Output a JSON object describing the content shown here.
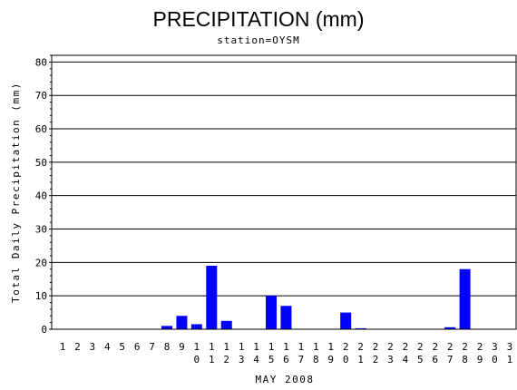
{
  "chart_data": {
    "type": "bar",
    "title": "PRECIPITATION (mm)",
    "subtitle": "station=OYSM",
    "xlabel": "MAY 2008",
    "ylabel": "Total Daily Precipitation (mm)",
    "ylim": [
      0,
      82
    ],
    "yticks": [
      0,
      10,
      20,
      30,
      40,
      50,
      60,
      70,
      80
    ],
    "grid": true,
    "bar_color": "#0000ff",
    "categories": [
      "1",
      "2",
      "3",
      "4",
      "5",
      "6",
      "7",
      "8",
      "9",
      "10",
      "11",
      "12",
      "13",
      "14",
      "15",
      "16",
      "17",
      "18",
      "19",
      "20",
      "21",
      "22",
      "23",
      "24",
      "25",
      "26",
      "27",
      "28",
      "29",
      "30",
      "31"
    ],
    "values": [
      0,
      0,
      0,
      0,
      0,
      0,
      0,
      1,
      4,
      1.5,
      19,
      2.5,
      0,
      0,
      10,
      7,
      0,
      0,
      0,
      5,
      0.3,
      0,
      0,
      0,
      0,
      0,
      0.6,
      18,
      0,
      0,
      0
    ]
  }
}
